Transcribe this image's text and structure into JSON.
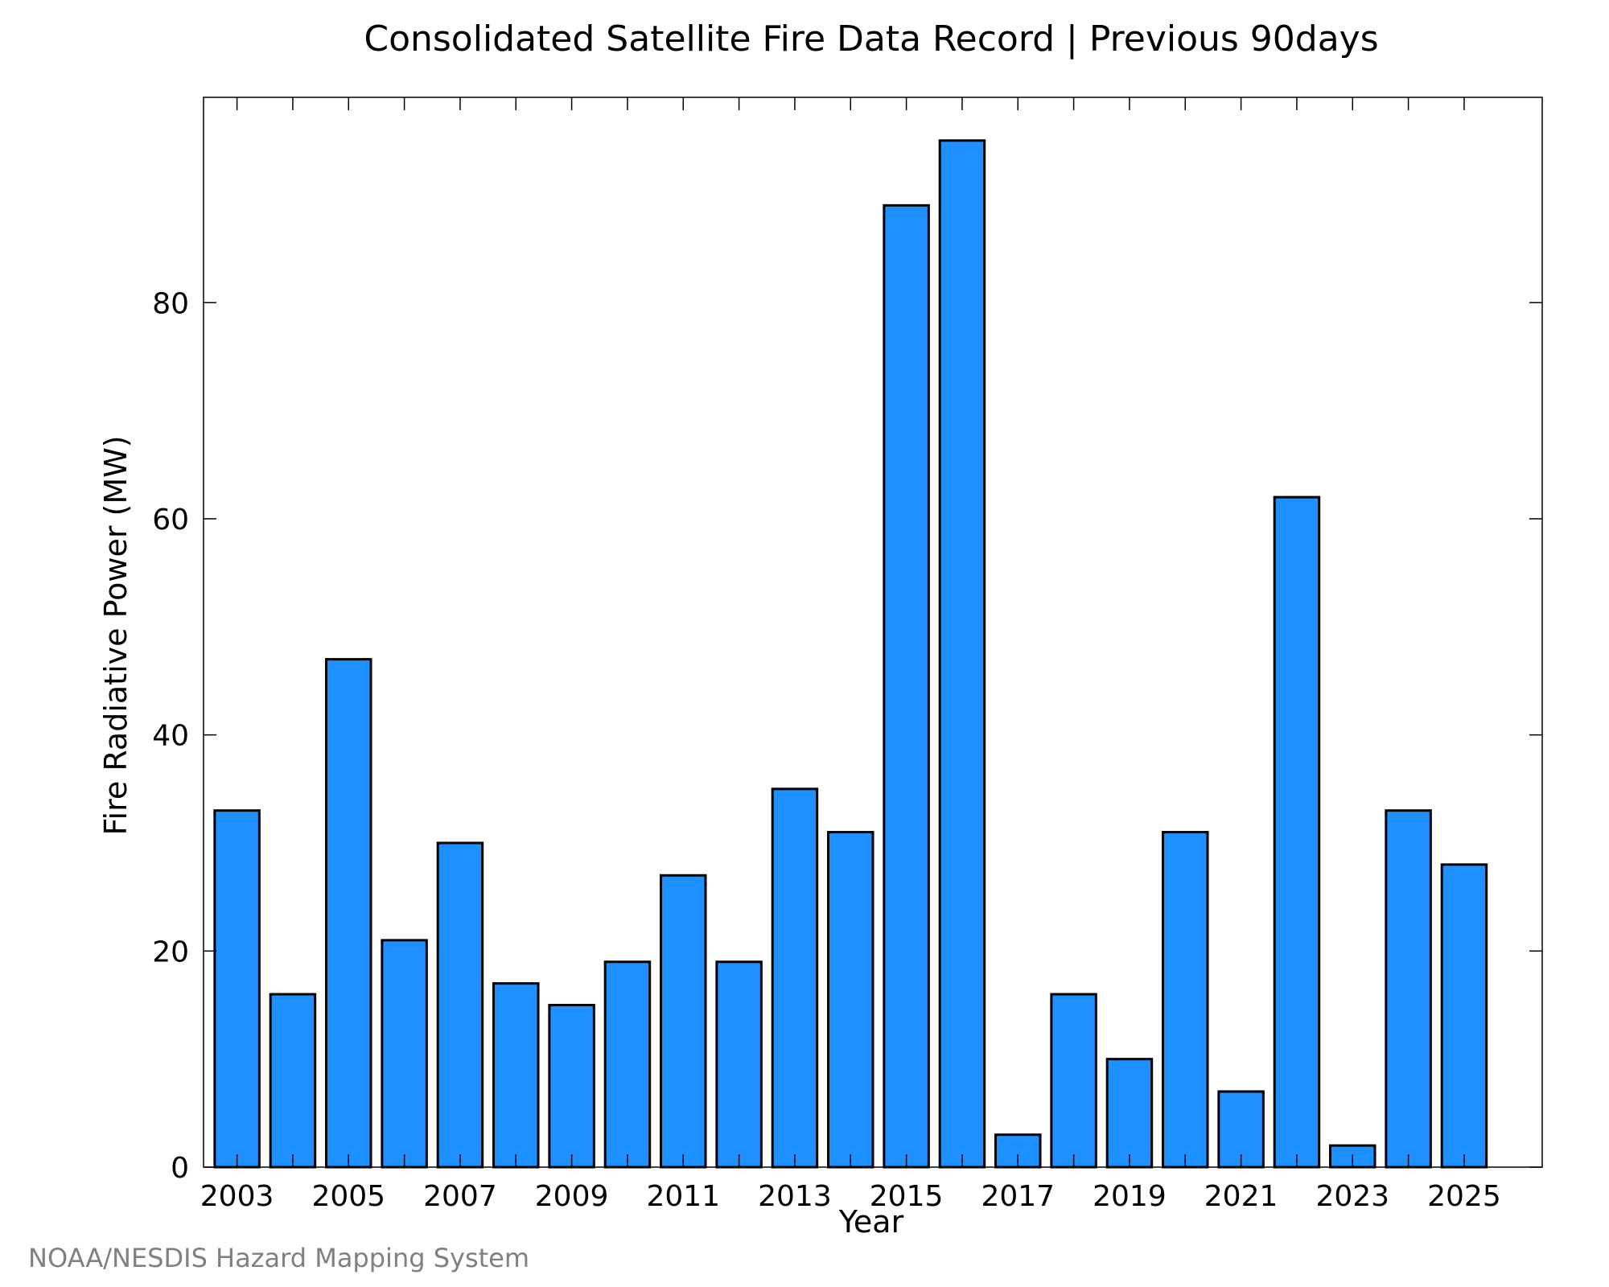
{
  "chart_data": {
    "type": "bar",
    "title": "Consolidated Satellite Fire Data Record | Previous 90days",
    "xlabel": "Year",
    "ylabel": "Fire Radiative Power (MW)",
    "categories": [
      "2003",
      "2004",
      "2005",
      "2006",
      "2007",
      "2008",
      "2009",
      "2010",
      "2011",
      "2012",
      "2013",
      "2014",
      "2015",
      "2016",
      "2017",
      "2018",
      "2019",
      "2020",
      "2021",
      "2022",
      "2023",
      "2024",
      "2025"
    ],
    "values": [
      33,
      16,
      47,
      21,
      30,
      17,
      15,
      19,
      27,
      19,
      35,
      31,
      89,
      95,
      3,
      16,
      10,
      31,
      7,
      62,
      2,
      33,
      28
    ],
    "xtick_labels": [
      "2003",
      "2005",
      "2007",
      "2009",
      "2011",
      "2013",
      "2015",
      "2017",
      "2019",
      "2021",
      "2023",
      "2025"
    ],
    "yticks": [
      0,
      20,
      40,
      60,
      80
    ],
    "ylim": [
      0,
      99
    ],
    "grid": false,
    "legend": "none",
    "bar_color": "#1E90FF",
    "bar_edge_color": "#000000"
  },
  "credit": "NOAA/NESDIS Hazard Mapping System"
}
